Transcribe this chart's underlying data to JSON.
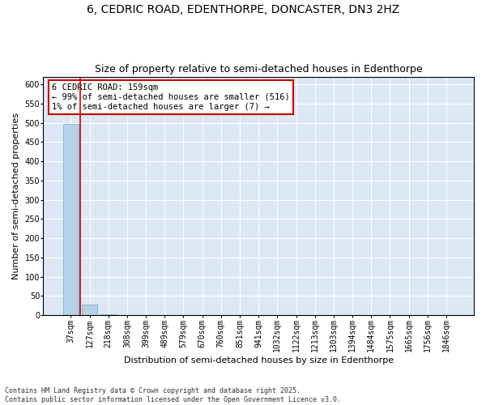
{
  "title": "6, CEDRIC ROAD, EDENTHORPE, DONCASTER, DN3 2HZ",
  "subtitle": "Size of property relative to semi-detached houses in Edenthorpe",
  "xlabel": "Distribution of semi-detached houses by size in Edenthorpe",
  "ylabel": "Number of semi-detached properties",
  "categories": [
    "37sqm",
    "127sqm",
    "218sqm",
    "308sqm",
    "399sqm",
    "489sqm",
    "579sqm",
    "670sqm",
    "760sqm",
    "851sqm",
    "941sqm",
    "1032sqm",
    "1122sqm",
    "1213sqm",
    "1303sqm",
    "1394sqm",
    "1484sqm",
    "1575sqm",
    "1665sqm",
    "1756sqm",
    "1846sqm"
  ],
  "values": [
    496,
    28,
    3,
    0,
    0,
    0,
    0,
    0,
    0,
    0,
    0,
    0,
    0,
    0,
    0,
    0,
    0,
    0,
    0,
    0,
    1
  ],
  "bar_color": "#b8d0e8",
  "bar_edge_color": "#6aaad4",
  "vline_x": 0.5,
  "vline_color": "#cc0000",
  "annotation_text": "6 CEDRIC ROAD: 159sqm\n← 99% of semi-detached houses are smaller (516)\n1% of semi-detached houses are larger (7) →",
  "annotation_box_color": "#ffffff",
  "annotation_box_edge": "#cc0000",
  "ylim": [
    0,
    620
  ],
  "yticks": [
    0,
    50,
    100,
    150,
    200,
    250,
    300,
    350,
    400,
    450,
    500,
    550,
    600
  ],
  "plot_bg_color": "#dce9f5",
  "footer": "Contains HM Land Registry data © Crown copyright and database right 2025.\nContains public sector information licensed under the Open Government Licence v3.0.",
  "title_fontsize": 10,
  "subtitle_fontsize": 9,
  "tick_fontsize": 7,
  "ylabel_fontsize": 8,
  "xlabel_fontsize": 8,
  "footer_fontsize": 6,
  "annot_fontsize": 7.5
}
